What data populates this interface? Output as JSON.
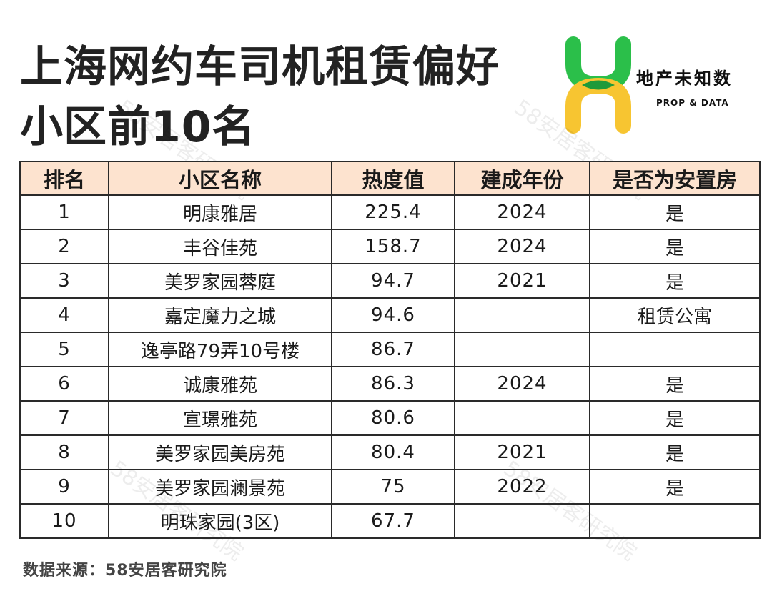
{
  "title": {
    "line1": "上海网约车司机租赁偏好",
    "line2": "小区前10名"
  },
  "logo": {
    "name_cn": "地产未知数",
    "name_en": "PROP & DATA",
    "colors": {
      "green": "#2bbf4a",
      "yellow": "#f7c531",
      "dark_green": "#1f9a3a"
    }
  },
  "watermark": "58安居客研究院",
  "table": {
    "headers": [
      "排名",
      "小区名称",
      "热度值",
      "建成年份",
      "是否为安置房"
    ],
    "header_bg": "#fde3cf",
    "rows": [
      {
        "rank": "1",
        "name": "明康雅居",
        "heat": "225.4",
        "year": "2024",
        "resettlement": "是"
      },
      {
        "rank": "2",
        "name": "丰谷佳苑",
        "heat": "158.7",
        "year": "2024",
        "resettlement": "是"
      },
      {
        "rank": "3",
        "name": "美罗家园蓉庭",
        "heat": "94.7",
        "year": "2021",
        "resettlement": "是"
      },
      {
        "rank": "4",
        "name": "嘉定魔力之城",
        "heat": "94.6",
        "year": "",
        "resettlement": "租赁公寓"
      },
      {
        "rank": "5",
        "name": "逸亭路79弄10号楼",
        "heat": "86.7",
        "year": "",
        "resettlement": ""
      },
      {
        "rank": "6",
        "name": "诚康雅苑",
        "heat": "86.3",
        "year": "2024",
        "resettlement": "是"
      },
      {
        "rank": "7",
        "name": "宣璟雅苑",
        "heat": "80.6",
        "year": "",
        "resettlement": "是"
      },
      {
        "rank": "8",
        "name": "美罗家园美房苑",
        "heat": "80.4",
        "year": "2021",
        "resettlement": "是"
      },
      {
        "rank": "9",
        "name": "美罗家园澜景苑",
        "heat": "75",
        "year": "2022",
        "resettlement": "是"
      },
      {
        "rank": "10",
        "name": "明珠家园(3区)",
        "heat": "67.7",
        "year": "",
        "resettlement": ""
      }
    ]
  },
  "source": "数据来源：58安居客研究院"
}
